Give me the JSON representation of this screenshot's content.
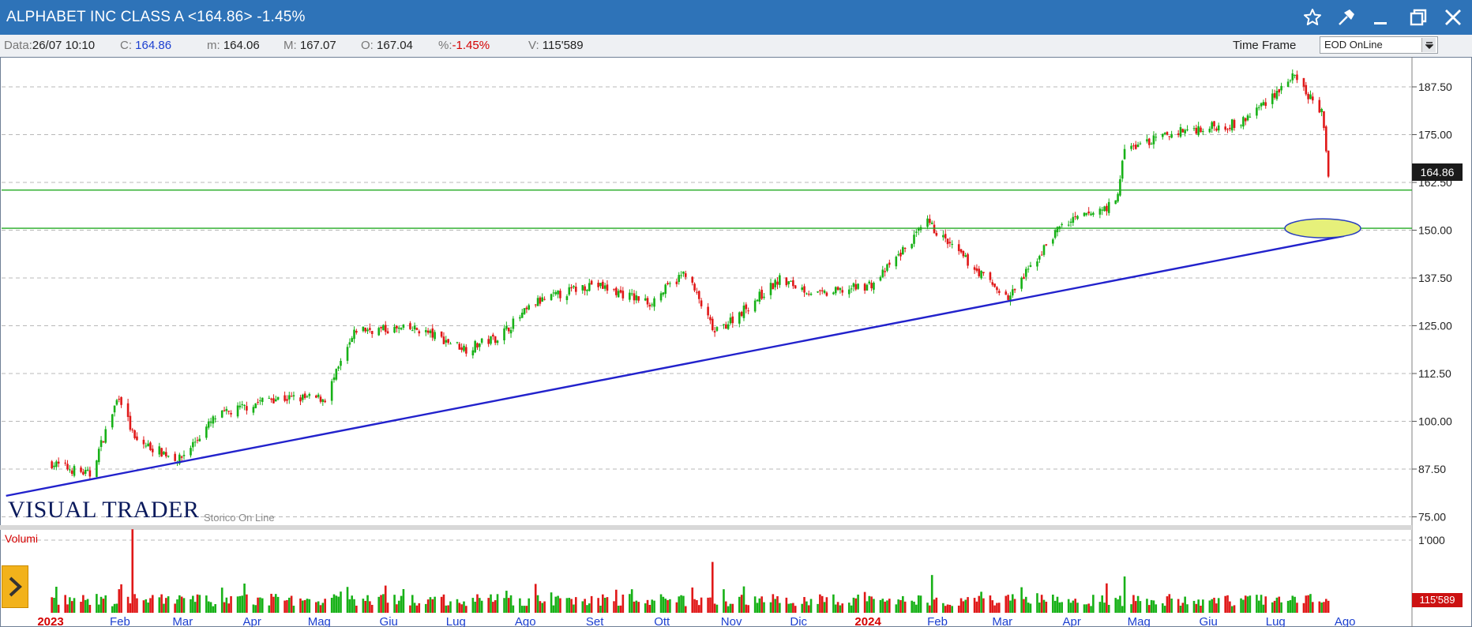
{
  "window": {
    "title": "ALPHABET INC CLASS A <164.86> -1.45%",
    "colors": {
      "titlebar": "#2e73b8",
      "up": "#17b117",
      "down": "#e01818",
      "trendline": "#2222cc",
      "support": "#22aa22",
      "highlight": "#e6f07a"
    }
  },
  "titlebar_buttons": [
    {
      "name": "favorite-star-icon"
    },
    {
      "name": "pin-icon"
    },
    {
      "name": "minimize-icon"
    },
    {
      "name": "restore-icon"
    },
    {
      "name": "close-icon"
    }
  ],
  "info": {
    "date_label": "Data:",
    "date_value": "26/07 10:10",
    "close_label": "C:",
    "close_value": "164.86",
    "min_label": "m:",
    "min_value": "164.06",
    "max_label": "M:",
    "max_value": "167.07",
    "open_label": "O:",
    "open_value": "167.04",
    "pct_label": "%:",
    "pct_value": "-1.45%",
    "vol_label": "V:",
    "vol_value": "115'589"
  },
  "timeframe": {
    "label": "Time Frame",
    "selected": "EOD OnLine"
  },
  "branding": {
    "logo": "VISUAL TRADER",
    "subtitle": "Storico On Line"
  },
  "volume_panel": {
    "label": "Volumi",
    "last_volume": "115'589"
  },
  "price_tag": "164.86",
  "chart_data": {
    "type": "candlestick",
    "title": "ALPHABET INC CLASS A",
    "y_ticks": [
      "187.50",
      "175.00",
      "162.50",
      "150.00",
      "137.50",
      "125.00",
      "112.50",
      "100.00",
      "87.50",
      "75.00"
    ],
    "ylim": [
      75,
      190
    ],
    "volume_ticks": [
      "1'000"
    ],
    "x_ticks": [
      {
        "label": "2023",
        "year": true
      },
      {
        "label": "Feb"
      },
      {
        "label": "Mar"
      },
      {
        "label": "Apr"
      },
      {
        "label": "Mag"
      },
      {
        "label": "Giu"
      },
      {
        "label": "Lug"
      },
      {
        "label": "Ago"
      },
      {
        "label": "Set"
      },
      {
        "label": "Ott"
      },
      {
        "label": "Nov"
      },
      {
        "label": "Dic"
      },
      {
        "label": "2024",
        "year": true
      },
      {
        "label": "Feb"
      },
      {
        "label": "Mar"
      },
      {
        "label": "Apr"
      },
      {
        "label": "Mag"
      },
      {
        "label": "Giu"
      },
      {
        "label": "Lug"
      },
      {
        "label": "Ago"
      }
    ],
    "price_path": [
      {
        "date": "2023-01-03",
        "close": 89
      },
      {
        "date": "2023-01-20",
        "close": 86
      },
      {
        "date": "2023-02-02",
        "close": 107
      },
      {
        "date": "2023-02-09",
        "close": 95
      },
      {
        "date": "2023-03-01",
        "close": 90
      },
      {
        "date": "2023-03-17",
        "close": 101
      },
      {
        "date": "2023-04-10",
        "close": 106
      },
      {
        "date": "2023-05-05",
        "close": 106
      },
      {
        "date": "2023-05-19",
        "close": 124
      },
      {
        "date": "2023-06-16",
        "close": 124
      },
      {
        "date": "2023-07-07",
        "close": 119
      },
      {
        "date": "2023-07-21",
        "close": 122
      },
      {
        "date": "2023-08-07",
        "close": 131
      },
      {
        "date": "2023-09-01",
        "close": 136
      },
      {
        "date": "2023-09-27",
        "close": 131
      },
      {
        "date": "2023-10-13",
        "close": 139
      },
      {
        "date": "2023-10-26",
        "close": 123
      },
      {
        "date": "2023-11-24",
        "close": 137
      },
      {
        "date": "2023-12-12",
        "close": 133
      },
      {
        "date": "2024-01-05",
        "close": 136
      },
      {
        "date": "2024-01-29",
        "close": 152
      },
      {
        "date": "2024-02-08",
        "close": 146
      },
      {
        "date": "2024-03-05",
        "close": 132
      },
      {
        "date": "2024-03-28",
        "close": 151
      },
      {
        "date": "2024-04-22",
        "close": 157
      },
      {
        "date": "2024-04-26",
        "close": 171
      },
      {
        "date": "2024-05-21",
        "close": 176
      },
      {
        "date": "2024-06-17",
        "close": 178
      },
      {
        "date": "2024-07-10",
        "close": 190
      },
      {
        "date": "2024-07-23",
        "close": 181
      },
      {
        "date": "2024-07-26",
        "close": 164.86
      }
    ],
    "volume_spikes": [
      {
        "date": "2023-02-08",
        "volume": 1150
      },
      {
        "date": "2023-10-25",
        "volume": 700
      },
      {
        "date": "2024-01-31",
        "volume": 520
      },
      {
        "date": "2024-04-26",
        "volume": 500
      }
    ],
    "annotations": {
      "support_lines": [
        160.5,
        150.5
      ],
      "trendline": {
        "from": {
          "date": "2023-01-03",
          "value": 80.5
        },
        "to": {
          "date": "2024-08-02",
          "value": 148.5
        }
      },
      "highlight_ellipse": {
        "date": "2024-08-02",
        "value": 150.5
      }
    }
  }
}
